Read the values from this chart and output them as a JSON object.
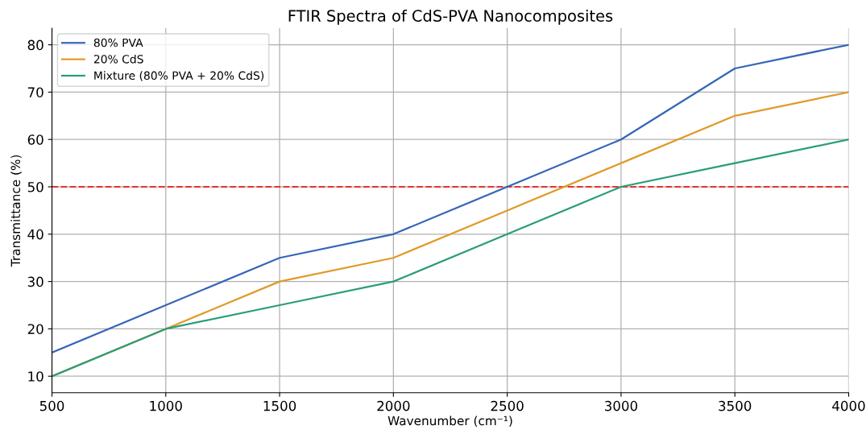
{
  "chart_data": {
    "type": "line",
    "title": "FTIR Spectra of CdS-PVA Nanocomposites",
    "xlabel": "Wavenumber (cm⁻¹)",
    "ylabel": "Transmittance (%)",
    "x": [
      500,
      1000,
      1500,
      2000,
      2500,
      3000,
      3500,
      4000
    ],
    "series": [
      {
        "name": "80% PVA",
        "color": "#3566b8",
        "values": [
          15,
          25,
          35,
          40,
          50,
          60,
          75,
          80
        ]
      },
      {
        "name": "20% CdS",
        "color": "#e09a28",
        "values": [
          10,
          20,
          30,
          35,
          45,
          55,
          65,
          70
        ]
      },
      {
        "name": "Mixture (80% PVA + 20% CdS)",
        "color": "#2a9d78",
        "values": [
          10,
          20,
          25,
          30,
          40,
          50,
          55,
          60
        ]
      }
    ],
    "xlim": [
      500,
      4000
    ],
    "xticks": [
      500,
      1000,
      1500,
      2000,
      2500,
      3000,
      3500,
      4000
    ],
    "ylim": [
      6.5,
      83.5
    ],
    "yticks": [
      10,
      20,
      30,
      40,
      50,
      60,
      70,
      80
    ],
    "ref_lines": [
      {
        "axis": "y",
        "value": 50,
        "color": "#e8322b",
        "line_style": "dashed"
      }
    ],
    "grid": true,
    "legend": "top left",
    "marker": "none",
    "line_style": "solid"
  }
}
